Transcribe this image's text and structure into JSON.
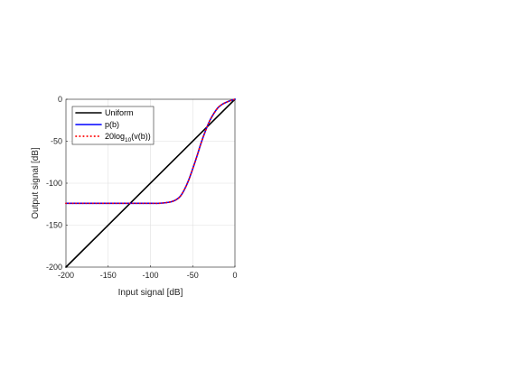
{
  "chart_data": {
    "type": "line",
    "title": "",
    "xlabel": "Input signal [dB]",
    "ylabel": "Output signal [dB]",
    "xlim": [
      -200,
      0
    ],
    "ylim": [
      -200,
      0
    ],
    "xticks": [
      -200,
      -150,
      -100,
      -50,
      0
    ],
    "yticks": [
      -200,
      -150,
      -100,
      -50,
      0
    ],
    "xtick_labels": [
      "-200",
      "-150",
      "-100",
      "-50",
      "0"
    ],
    "ytick_labels": [
      "-200",
      "-150",
      "-100",
      "-50",
      "0"
    ],
    "grid": true,
    "legend_position": "top-left",
    "series": [
      {
        "name": "Uniform",
        "color": "#000000",
        "style": "solid",
        "x": [
          -200,
          0
        ],
        "y": [
          -200,
          0
        ]
      },
      {
        "name": "p(b)",
        "color": "#0000ff",
        "style": "solid",
        "x": [
          -200,
          -150,
          -100,
          -90,
          -80,
          -75,
          -70,
          -65,
          -60,
          -55,
          -50,
          -45,
          -40,
          -35,
          -30,
          -25,
          -20,
          -15,
          -10,
          -5,
          0
        ],
        "y": [
          -124,
          -124,
          -124,
          -124,
          -123,
          -122,
          -120,
          -116,
          -108,
          -97,
          -83,
          -68,
          -52,
          -38,
          -26,
          -17,
          -10,
          -6,
          -3.5,
          -1.5,
          0
        ]
      },
      {
        "name_prefix": "20log",
        "name_sub": "10",
        "name_suffix": "(v(b))",
        "color": "#ff0000",
        "style": "dotted",
        "x": [
          -200,
          -150,
          -100,
          -90,
          -80,
          -75,
          -70,
          -65,
          -60,
          -55,
          -50,
          -45,
          -40,
          -35,
          -30,
          -25,
          -20,
          -15,
          -10,
          -5,
          0
        ],
        "y": [
          -124,
          -124,
          -124,
          -124,
          -123,
          -122,
          -120,
          -116,
          -108,
          -97,
          -83,
          -68,
          -52,
          -38,
          -26,
          -17,
          -10,
          -6,
          -3.5,
          -1.5,
          0
        ]
      }
    ]
  }
}
